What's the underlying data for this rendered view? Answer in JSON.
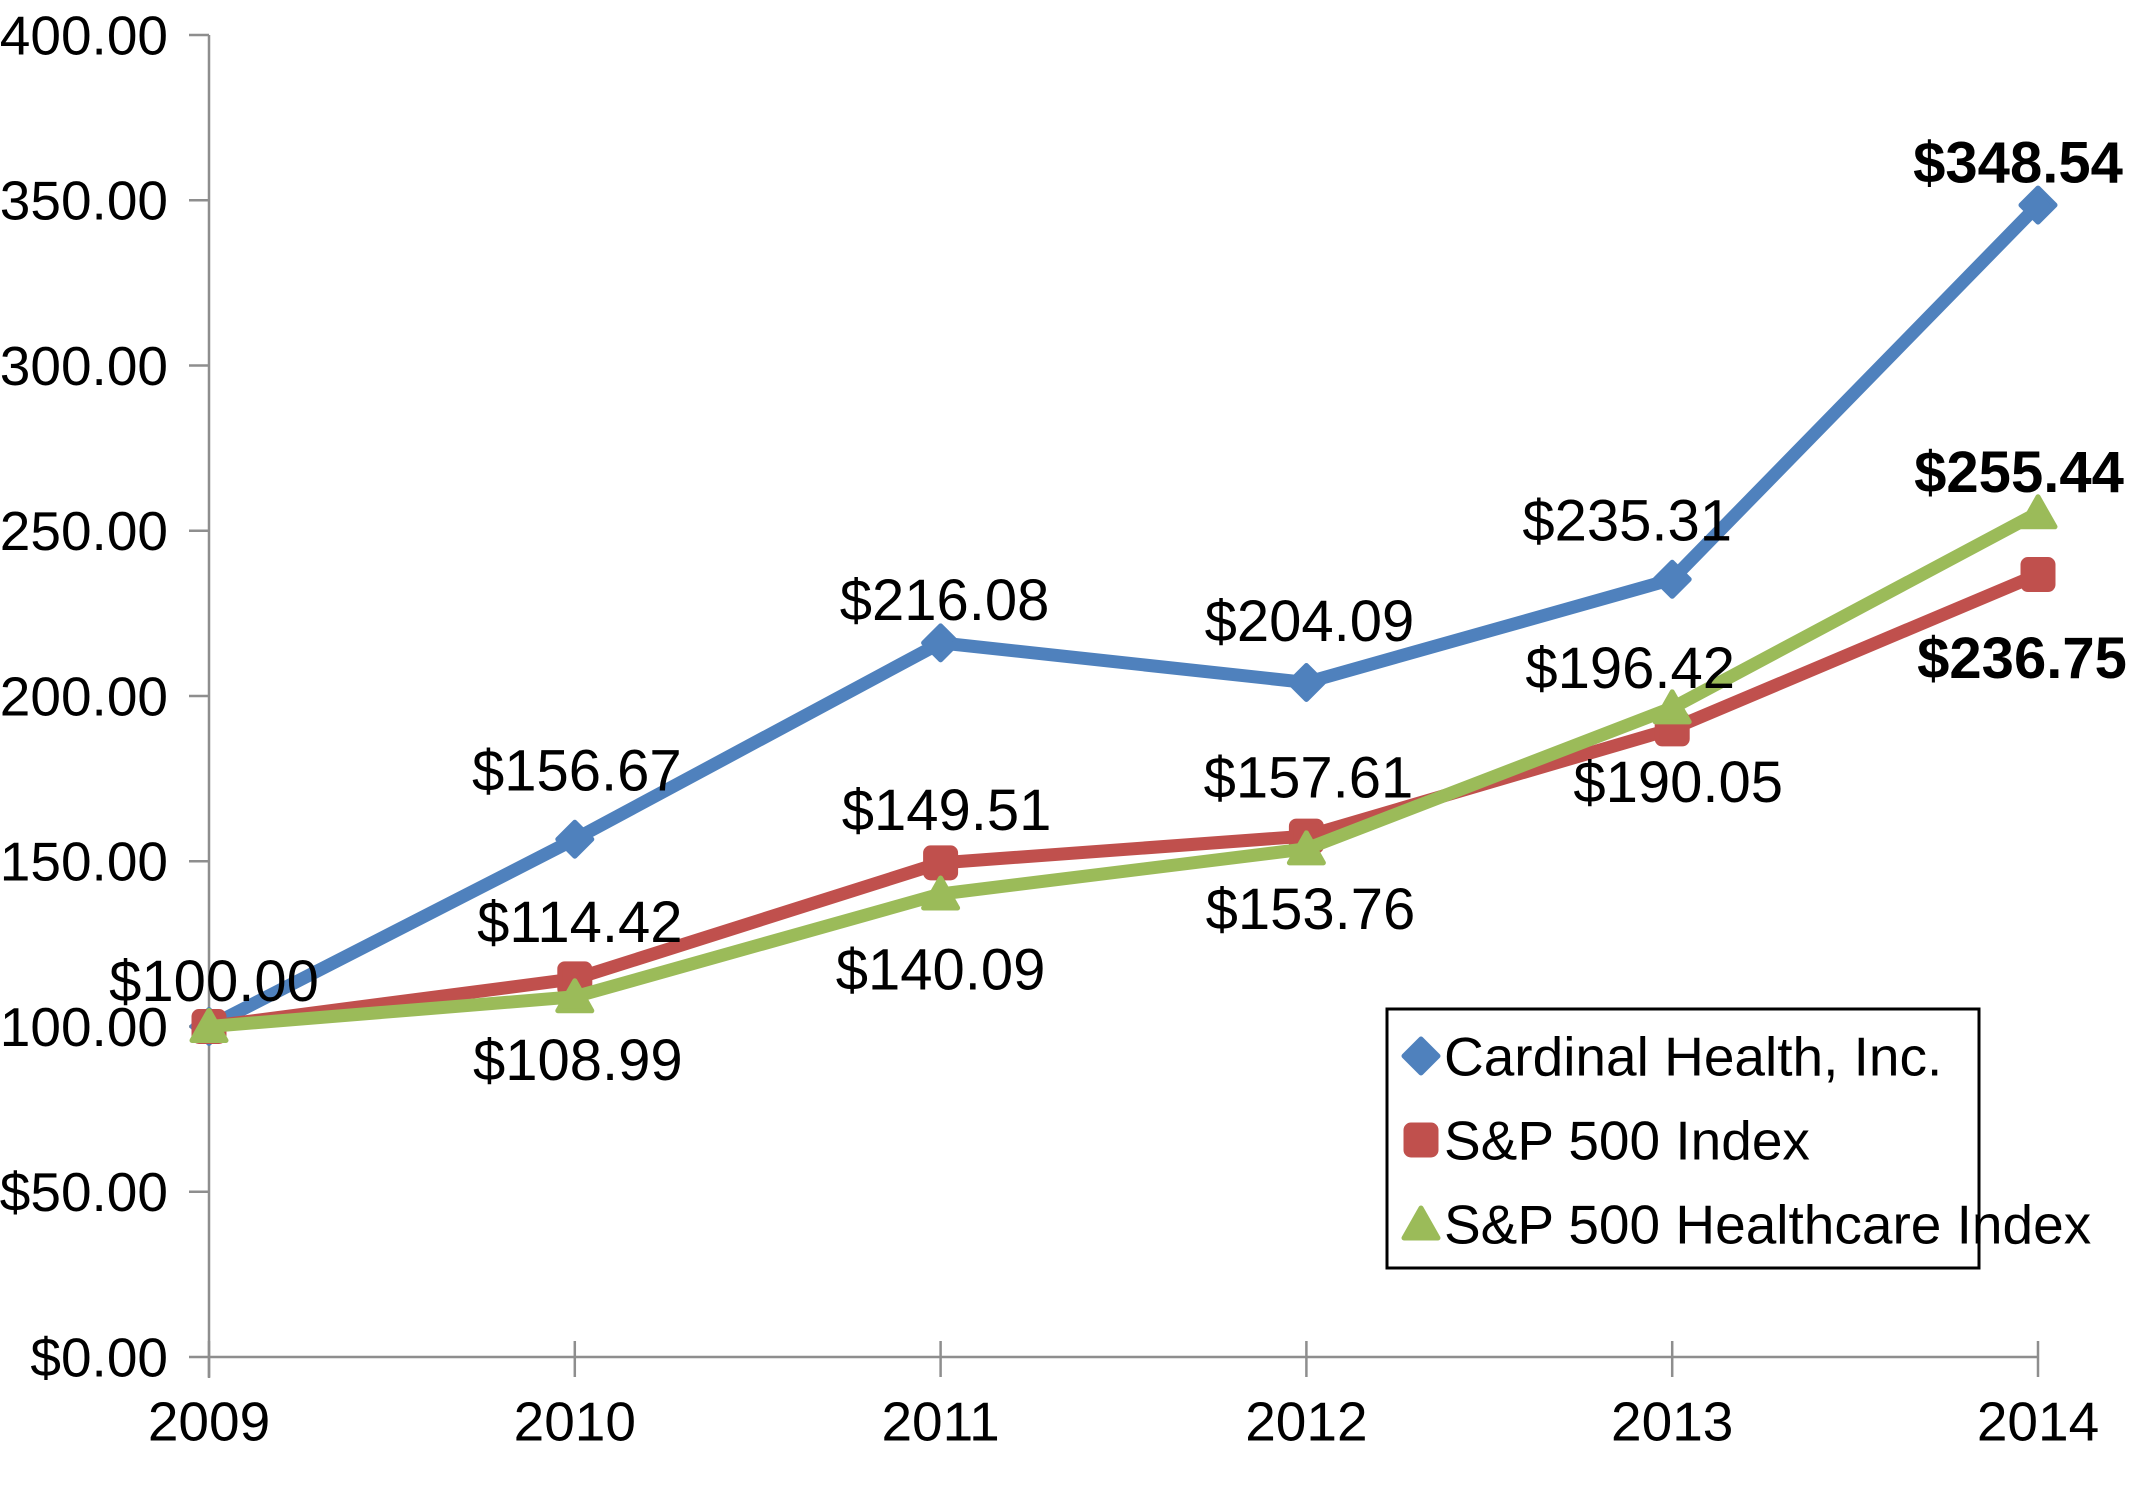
{
  "page": {
    "background": "#FFFFFF"
  },
  "chart_data": {
    "type": "line",
    "title": "",
    "x_categories": [
      "2009",
      "2010",
      "2011",
      "2012",
      "2013",
      "2014"
    ],
    "x_axis": {
      "tick_labels": [
        "2009",
        "2010",
        "2011",
        "2012",
        "2013",
        "2014"
      ],
      "axis_color": "#8E8E8E"
    },
    "y_axis": {
      "min": 0,
      "max": 400,
      "step": 50,
      "tick_labels": [
        "$400.00",
        "$350.00",
        "$300.00",
        "$250.00",
        "$200.00",
        "$150.00",
        "$100.00",
        "$50.00",
        "$0.00"
      ],
      "tick_values": [
        400,
        350,
        300,
        250,
        200,
        150,
        100,
        50,
        0
      ],
      "axis_color": "#8E8E8E"
    },
    "grid": false,
    "series": [
      {
        "name": "Cardinal Health, Inc.",
        "color": "#4F81BD",
        "marker": "diamond",
        "values": [
          100.0,
          156.67,
          216.08,
          204.09,
          235.31,
          348.54
        ],
        "labels": [
          {
            "text": "$100.00",
            "dx": 5,
            "dy": -46,
            "bold": false
          },
          {
            "text": "$156.67",
            "dx": 2,
            "dy": -69,
            "bold": false
          },
          {
            "text": "$216.08",
            "dx": 4,
            "dy": -43,
            "bold": false
          },
          {
            "text": "$204.09",
            "dx": 3,
            "dy": -62,
            "bold": false
          },
          {
            "text": "$235.31",
            "dx": -45,
            "dy": -59,
            "bold": false
          },
          {
            "text": "$348.54",
            "dx": -20,
            "dy": -43,
            "bold": true
          }
        ]
      },
      {
        "name": "S&P 500 Index",
        "color": "#C0504D",
        "marker": "square",
        "values": [
          100.0,
          114.42,
          149.51,
          157.61,
          190.05,
          236.75
        ],
        "labels": [
          null,
          {
            "text": "$114.42",
            "dx": 5,
            "dy": -57,
            "bold": false
          },
          {
            "text": "$149.51",
            "dx": 6,
            "dy": -53,
            "bold": false
          },
          {
            "text": "$157.61",
            "dx": 2,
            "dy": -59,
            "bold": false
          },
          {
            "text": "$190.05",
            "dx": 6,
            "dy": 53,
            "bold": false
          },
          {
            "text": "$236.75",
            "dx": -16,
            "dy": 83,
            "bold": true
          }
        ]
      },
      {
        "name": "S&P 500 Healthcare Index",
        "color": "#9BBB59",
        "marker": "triangle",
        "values": [
          100.0,
          108.99,
          140.09,
          153.76,
          196.42,
          255.44
        ],
        "labels": [
          null,
          {
            "text": "$108.99",
            "dx": 3,
            "dy": 63,
            "bold": false
          },
          {
            "text": "$140.09",
            "dx": 0,
            "dy": 75,
            "bold": false
          },
          {
            "text": "$153.76",
            "dx": 4,
            "dy": 60,
            "bold": false
          },
          {
            "text": "$196.42",
            "dx": -42,
            "dy": -40,
            "bold": false
          },
          {
            "text": "$255.44",
            "dx": -19,
            "dy": -41,
            "bold": true
          }
        ]
      }
    ],
    "legend": {
      "position": "inside-bottom-right",
      "border_color": "#000000",
      "background": "#FFFFFF",
      "entries": [
        {
          "label": "Cardinal Health, Inc.",
          "marker": "diamond",
          "color": "#4F81BD"
        },
        {
          "label": "S&P 500 Index",
          "marker": "square",
          "color": "#C0504D"
        },
        {
          "label": "S&P 500 Healthcare Index",
          "marker": "triangle",
          "color": "#9BBB59"
        }
      ]
    }
  }
}
